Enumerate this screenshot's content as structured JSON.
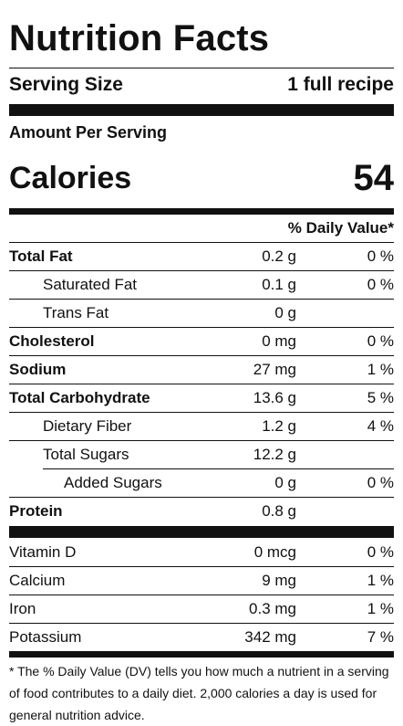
{
  "title": "Nutrition Facts",
  "serving": {
    "label": "Serving Size",
    "value": "1 full recipe"
  },
  "amount_per_serving": "Amount Per Serving",
  "calories": {
    "label": "Calories",
    "value": "54"
  },
  "daily_value_header": "% Daily Value*",
  "nutrients": [
    {
      "name": "Total Fat",
      "amount": "0.2 g",
      "dv": "0 %"
    },
    {
      "name": "Saturated Fat",
      "amount": "0.1 g",
      "dv": "0 %"
    },
    {
      "name": "Trans Fat",
      "amount": "0 g",
      "dv": ""
    },
    {
      "name": "Cholesterol",
      "amount": "0 mg",
      "dv": "0 %"
    },
    {
      "name": "Sodium",
      "amount": "27 mg",
      "dv": "1 %"
    },
    {
      "name": "Total Carbohydrate",
      "amount": "13.6 g",
      "dv": "5 %"
    },
    {
      "name": "Dietary Fiber",
      "amount": "1.2 g",
      "dv": "4 %"
    },
    {
      "name": "Total Sugars",
      "amount": "12.2 g",
      "dv": ""
    },
    {
      "name": "Added Sugars",
      "amount": "0 g",
      "dv": "0 %"
    },
    {
      "name": "Protein",
      "amount": "0.8 g",
      "dv": ""
    }
  ],
  "vitamins": [
    {
      "name": "Vitamin D",
      "amount": "0 mcg",
      "dv": "0 %"
    },
    {
      "name": "Calcium",
      "amount": "9 mg",
      "dv": "1 %"
    },
    {
      "name": "Iron",
      "amount": "0.3 mg",
      "dv": "1 %"
    },
    {
      "name": "Potassium",
      "amount": "342 mg",
      "dv": "7 %"
    }
  ],
  "footnote": "* The % Daily Value (DV) tells you how much a nutrient in a serving of food contributes to a daily diet. 2,000 calories a day is used for general nutrition advice."
}
